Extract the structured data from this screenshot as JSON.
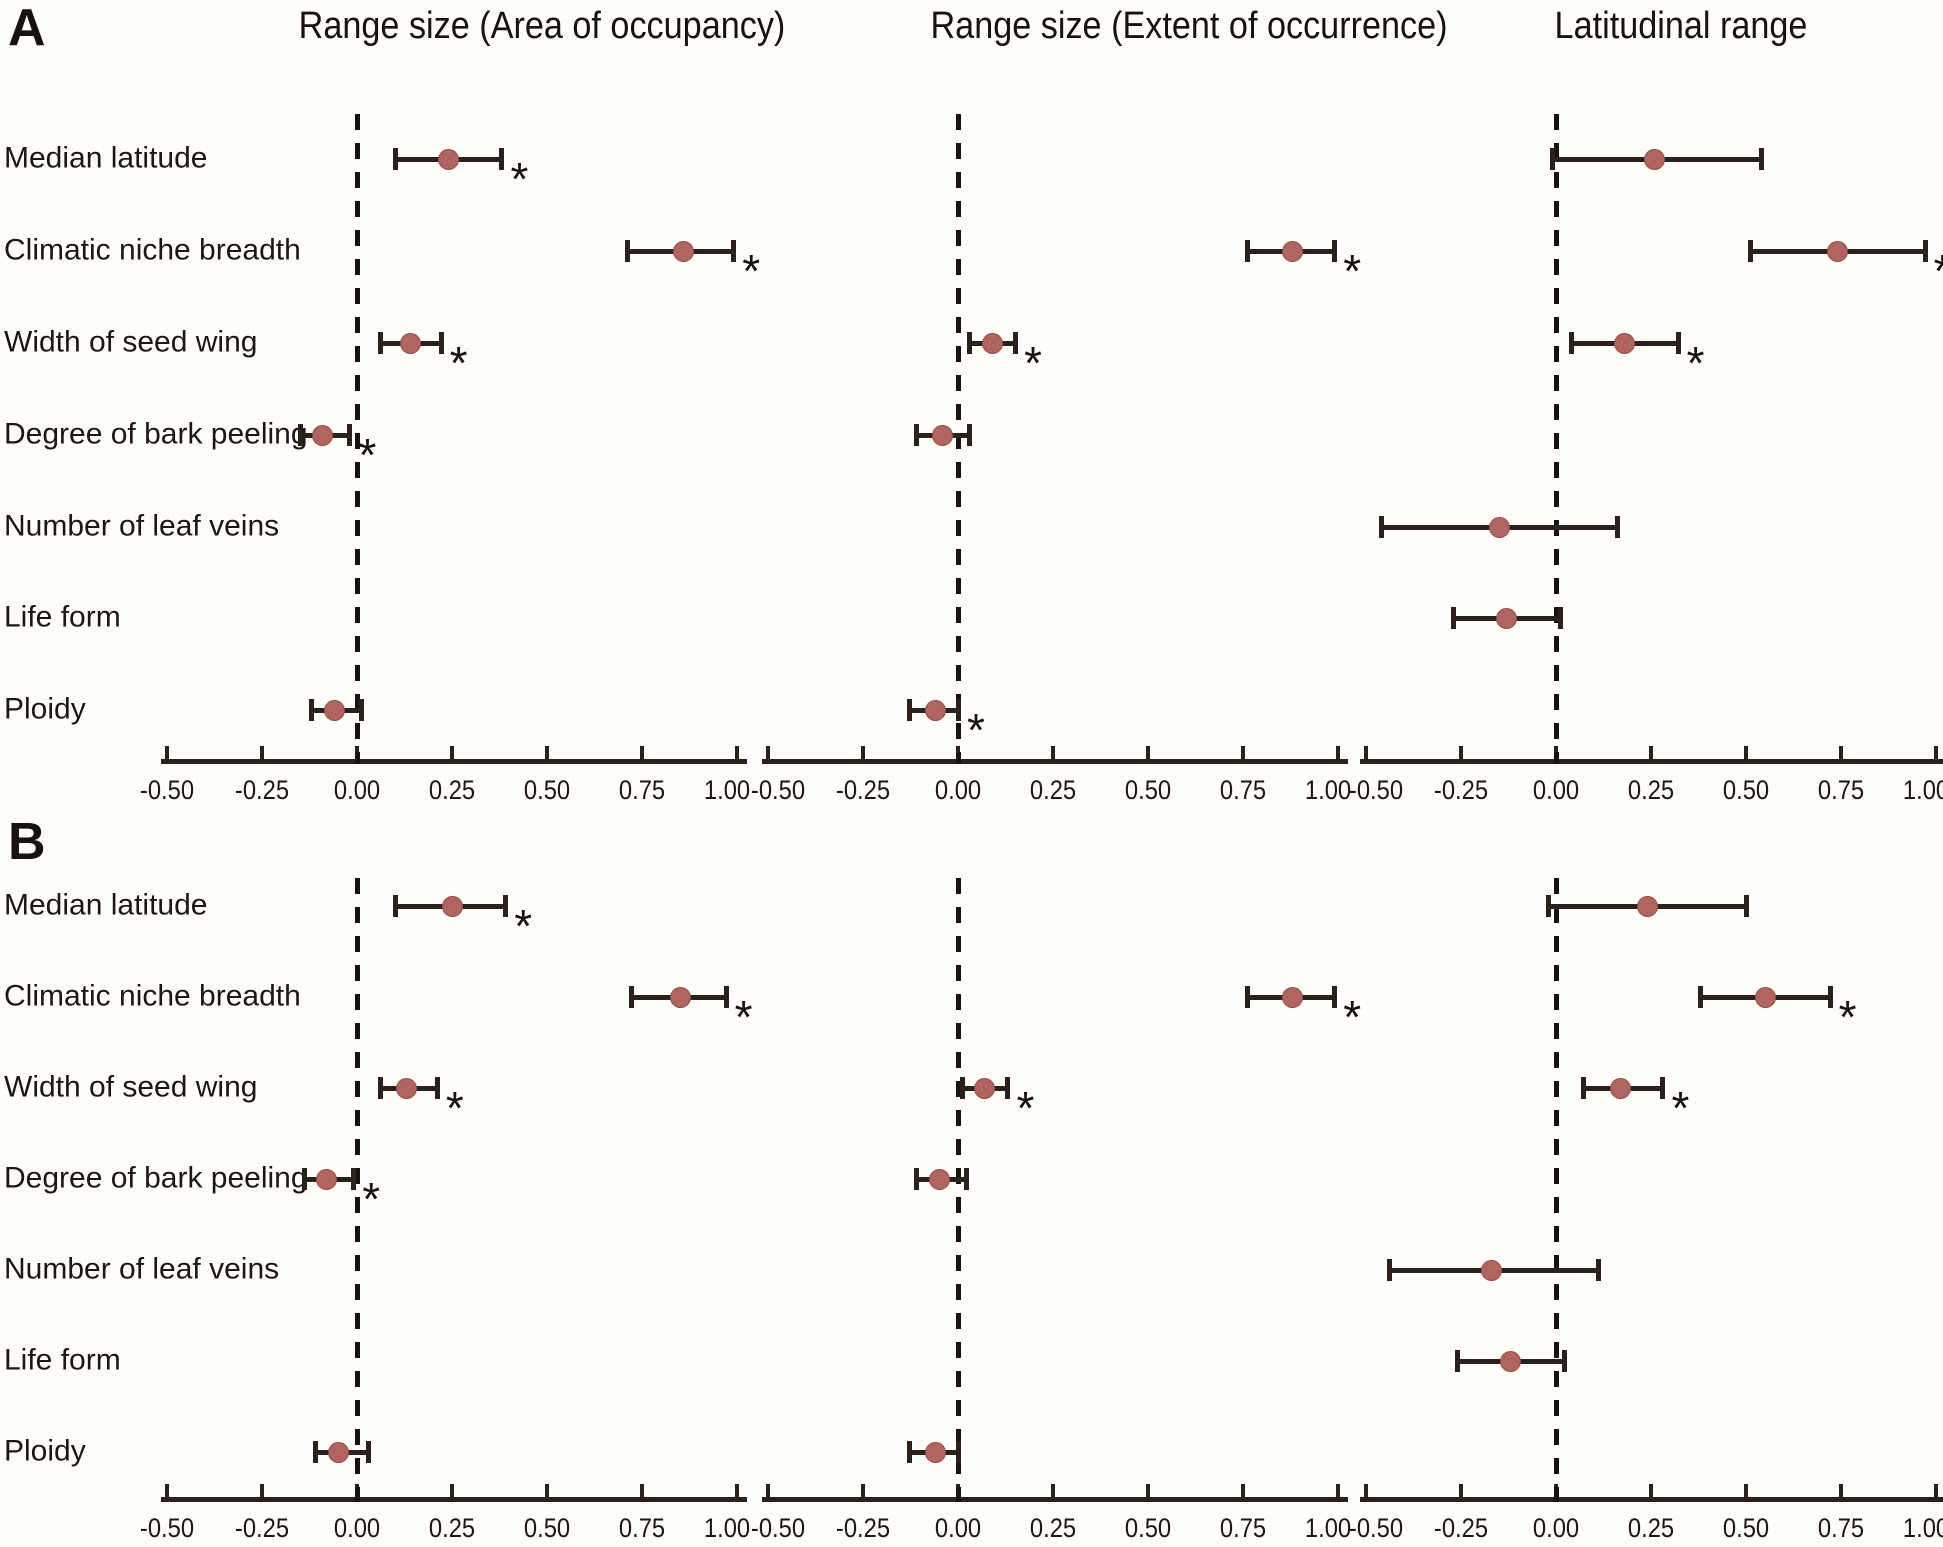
{
  "figure": {
    "background_color": "#fffdf8",
    "significance_marker": "*",
    "colors": {
      "point_fill": "#b26460",
      "whisker": "#2a211d",
      "axis": "#2a211d",
      "text": "#1b1713",
      "zero_line": "#18130f"
    }
  },
  "chart_data": {
    "type": "scatter",
    "subtype": "forest-dot-whisker",
    "legend_position": "none",
    "grid": false,
    "row_categories": [
      "Median latitude",
      "Climatic niche breadth",
      "Width of seed wing",
      "Degree of bark peeling",
      "Number of leaf veins",
      "Life form",
      "Ploidy"
    ],
    "column_titles": [
      "Range size (Area of occupancy)",
      "Range size (Extent of occurrence)",
      "Latitudinal range"
    ],
    "x_axis": {
      "tick_values": [
        -0.5,
        -0.25,
        0,
        0.25,
        0.5,
        0.75,
        1.0
      ],
      "tick_labels": [
        "-0.50",
        "-0.25",
        "0.00",
        "0.25",
        "0.50",
        "0.75",
        "1.00"
      ],
      "range": [
        -0.5,
        1.0
      ],
      "zero_reference_line": "dashed"
    },
    "panels": [
      {
        "label": "A",
        "plots": [
          {
            "title": "Range size (Area of occupancy)",
            "points": [
              {
                "row": "Median latitude",
                "estimate": 0.24,
                "ci_low": 0.1,
                "ci_high": 0.38,
                "significant": true
              },
              {
                "row": "Climatic niche breadth",
                "estimate": 0.86,
                "ci_low": 0.71,
                "ci_high": 0.99,
                "significant": true
              },
              {
                "row": "Width of seed wing",
                "estimate": 0.14,
                "ci_low": 0.06,
                "ci_high": 0.22,
                "significant": true
              },
              {
                "row": "Degree of bark peeling",
                "estimate": -0.09,
                "ci_low": -0.15,
                "ci_high": -0.02,
                "significant": true
              },
              {
                "row": "Ploidy",
                "estimate": -0.06,
                "ci_low": -0.12,
                "ci_high": 0.01,
                "significant": false
              }
            ]
          },
          {
            "title": "Range size (Extent of occurrence)",
            "points": [
              {
                "row": "Climatic niche breadth",
                "estimate": 0.88,
                "ci_low": 0.76,
                "ci_high": 0.99,
                "significant": true
              },
              {
                "row": "Width of seed wing",
                "estimate": 0.09,
                "ci_low": 0.03,
                "ci_high": 0.15,
                "significant": true
              },
              {
                "row": "Degree of bark peeling",
                "estimate": -0.04,
                "ci_low": -0.11,
                "ci_high": 0.03,
                "significant": false
              },
              {
                "row": "Ploidy",
                "estimate": -0.06,
                "ci_low": -0.13,
                "ci_high": 0.0,
                "significant": true
              }
            ]
          },
          {
            "title": "Latitudinal range",
            "points": [
              {
                "row": "Median latitude",
                "estimate": 0.26,
                "ci_low": -0.01,
                "ci_high": 0.54,
                "significant": false
              },
              {
                "row": "Climatic niche breadth",
                "estimate": 0.74,
                "ci_low": 0.51,
                "ci_high": 0.97,
                "significant": true
              },
              {
                "row": "Width of seed wing",
                "estimate": 0.18,
                "ci_low": 0.04,
                "ci_high": 0.32,
                "significant": true
              },
              {
                "row": "Number of leaf veins",
                "estimate": -0.15,
                "ci_low": -0.46,
                "ci_high": 0.16,
                "significant": false
              },
              {
                "row": "Life form",
                "estimate": -0.13,
                "ci_low": -0.27,
                "ci_high": 0.01,
                "significant": false
              }
            ]
          }
        ]
      },
      {
        "label": "B",
        "plots": [
          {
            "title": "Range size (Area of occupancy)",
            "points": [
              {
                "row": "Median latitude",
                "estimate": 0.25,
                "ci_low": 0.1,
                "ci_high": 0.39,
                "significant": true
              },
              {
                "row": "Climatic niche breadth",
                "estimate": 0.85,
                "ci_low": 0.72,
                "ci_high": 0.97,
                "significant": true
              },
              {
                "row": "Width of seed wing",
                "estimate": 0.13,
                "ci_low": 0.06,
                "ci_high": 0.21,
                "significant": true
              },
              {
                "row": "Degree of bark peeling",
                "estimate": -0.08,
                "ci_low": -0.14,
                "ci_high": -0.01,
                "significant": true
              },
              {
                "row": "Ploidy",
                "estimate": -0.05,
                "ci_low": -0.11,
                "ci_high": 0.03,
                "significant": false
              }
            ]
          },
          {
            "title": "Range size (Extent of occurrence)",
            "points": [
              {
                "row": "Climatic niche breadth",
                "estimate": 0.88,
                "ci_low": 0.76,
                "ci_high": 0.99,
                "significant": true
              },
              {
                "row": "Width of seed wing",
                "estimate": 0.07,
                "ci_low": 0.01,
                "ci_high": 0.13,
                "significant": true
              },
              {
                "row": "Degree of bark peeling",
                "estimate": -0.05,
                "ci_low": -0.11,
                "ci_high": 0.02,
                "significant": false
              },
              {
                "row": "Ploidy",
                "estimate": -0.06,
                "ci_low": -0.13,
                "ci_high": 0.0,
                "significant": false
              }
            ]
          },
          {
            "title": "Latitudinal range",
            "points": [
              {
                "row": "Median latitude",
                "estimate": 0.24,
                "ci_low": -0.02,
                "ci_high": 0.5,
                "significant": false
              },
              {
                "row": "Climatic niche breadth",
                "estimate": 0.55,
                "ci_low": 0.38,
                "ci_high": 0.72,
                "significant": true
              },
              {
                "row": "Width of seed wing",
                "estimate": 0.17,
                "ci_low": 0.07,
                "ci_high": 0.28,
                "significant": true
              },
              {
                "row": "Number of leaf veins",
                "estimate": -0.17,
                "ci_low": -0.44,
                "ci_high": 0.11,
                "significant": false
              },
              {
                "row": "Life form",
                "estimate": -0.12,
                "ci_low": -0.26,
                "ci_high": 0.02,
                "significant": false
              }
            ]
          }
        ]
      }
    ]
  }
}
